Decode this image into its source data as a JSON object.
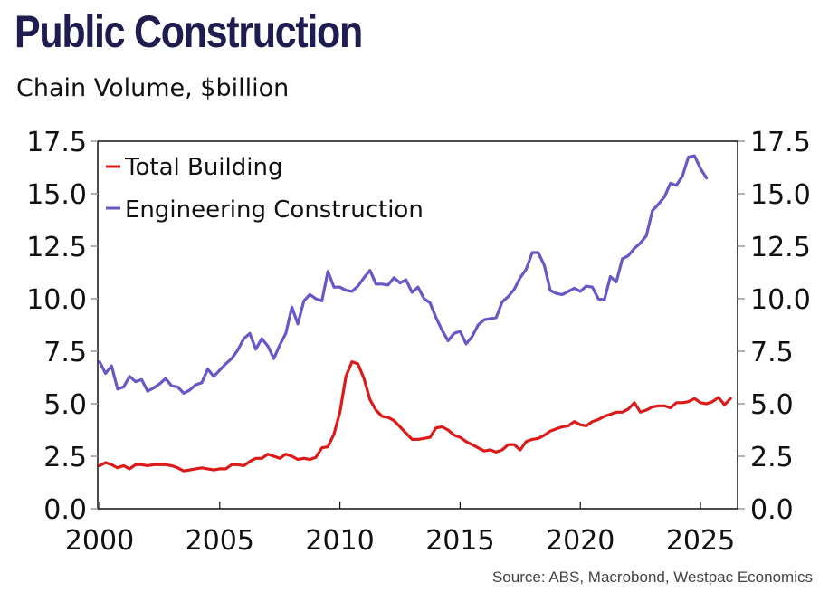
{
  "title": "Public Construction",
  "subtitle": "Chain Volume, $billion",
  "source": "Source: ABS, Macrobond, Westpac Economics",
  "colors": {
    "title": "#1f1d4f",
    "total_building": "#dd1a1a",
    "engineering": "#6759c5"
  },
  "chart_data": {
    "type": "line",
    "title": "Public Construction",
    "subtitle": "Chain Volume, $billion",
    "xlabel": "",
    "ylabel": "",
    "xlim": [
      2000,
      2026.6
    ],
    "ylim": [
      0,
      17.5
    ],
    "x_ticks": [
      2000,
      2005,
      2010,
      2015,
      2020,
      2025
    ],
    "x_tick_labels": [
      "2000",
      "2005",
      "2010",
      "2015",
      "2020",
      "2025"
    ],
    "y_ticks": [
      0,
      2.5,
      5,
      7.5,
      10,
      12.5,
      15,
      17.5
    ],
    "y_tick_labels": [
      "0.0",
      "2.5",
      "5.0",
      "7.5",
      "10.0",
      "12.5",
      "15.0",
      "17.5"
    ],
    "y_axis_right": true,
    "grid": false,
    "legend_position": "top-left",
    "frequency": "quarterly",
    "x_start": 2000.0,
    "x_step": 0.25,
    "series": [
      {
        "name": "Total Building",
        "color": "#dd1a1a",
        "values": [
          2.05,
          2.2,
          2.1,
          1.95,
          2.05,
          1.9,
          2.1,
          2.1,
          2.05,
          2.1,
          2.1,
          2.1,
          2.05,
          1.95,
          1.8,
          1.85,
          1.9,
          1.95,
          1.9,
          1.85,
          1.9,
          1.9,
          2.1,
          2.1,
          2.05,
          2.25,
          2.4,
          2.4,
          2.6,
          2.5,
          2.4,
          2.6,
          2.5,
          2.35,
          2.4,
          2.35,
          2.45,
          2.9,
          2.95,
          3.55,
          4.6,
          6.3,
          7.0,
          6.9,
          6.2,
          5.2,
          4.7,
          4.4,
          4.35,
          4.2,
          3.9,
          3.6,
          3.3,
          3.3,
          3.35,
          3.4,
          3.85,
          3.9,
          3.75,
          3.5,
          3.4,
          3.2,
          3.05,
          2.9,
          2.75,
          2.8,
          2.7,
          2.8,
          3.05,
          3.05,
          2.8,
          3.2,
          3.3,
          3.35,
          3.5,
          3.7,
          3.8,
          3.9,
          3.95,
          4.15,
          4.0,
          3.95,
          4.15,
          4.25,
          4.4,
          4.5,
          4.6,
          4.6,
          4.75,
          5.05,
          4.6,
          4.7,
          4.85,
          4.9,
          4.9,
          4.8,
          5.05,
          5.05,
          5.1,
          5.25,
          5.05,
          5.0,
          5.1,
          5.3,
          4.95,
          5.25
        ]
      },
      {
        "name": "Engineering Construction",
        "color": "#6759c5",
        "values": [
          7.0,
          6.45,
          6.8,
          5.7,
          5.8,
          6.3,
          6.05,
          6.15,
          5.6,
          5.75,
          5.95,
          6.2,
          5.85,
          5.8,
          5.5,
          5.65,
          5.9,
          6.0,
          6.65,
          6.3,
          6.6,
          6.9,
          7.15,
          7.55,
          8.1,
          8.35,
          7.6,
          8.1,
          7.75,
          7.15,
          7.8,
          8.35,
          9.6,
          8.8,
          9.9,
          10.2,
          10.0,
          9.9,
          11.3,
          10.55,
          10.55,
          10.4,
          10.35,
          10.6,
          11.0,
          11.35,
          10.7,
          10.7,
          10.65,
          11.0,
          10.75,
          10.9,
          10.3,
          10.55,
          10.0,
          9.8,
          9.1,
          8.5,
          8.0,
          8.35,
          8.45,
          7.85,
          8.2,
          8.75,
          9.0,
          9.05,
          9.1,
          9.85,
          10.1,
          10.45,
          11.0,
          11.4,
          12.2,
          12.2,
          11.6,
          10.4,
          10.25,
          10.2,
          10.35,
          10.5,
          10.35,
          10.6,
          10.55,
          10.0,
          9.95,
          11.05,
          10.8,
          11.9,
          12.05,
          12.4,
          12.65,
          13.0,
          14.2,
          14.5,
          14.85,
          15.5,
          15.4,
          15.85,
          16.75,
          16.8,
          16.2,
          15.75
        ]
      }
    ]
  },
  "legend": {
    "items": [
      {
        "label": "Total Building",
        "color": "#dd1a1a"
      },
      {
        "label": "Engineering Construction",
        "color": "#6759c5"
      }
    ]
  }
}
